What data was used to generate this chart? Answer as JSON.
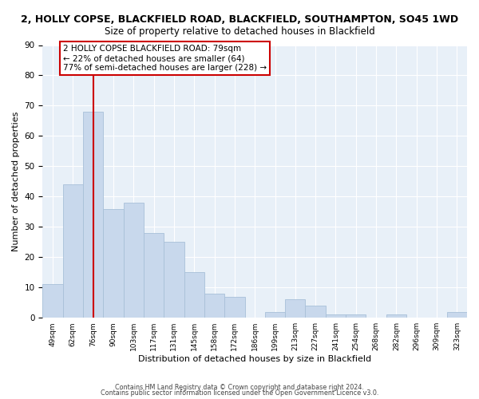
{
  "title": "2, HOLLY COPSE, BLACKFIELD ROAD, BLACKFIELD, SOUTHAMPTON, SO45 1WD",
  "subtitle": "Size of property relative to detached houses in Blackfield",
  "xlabel": "Distribution of detached houses by size in Blackfield",
  "ylabel": "Number of detached properties",
  "bar_color": "#c8d8ec",
  "bar_edge_color": "#a8c0d8",
  "categories": [
    "49sqm",
    "62sqm",
    "76sqm",
    "90sqm",
    "103sqm",
    "117sqm",
    "131sqm",
    "145sqm",
    "158sqm",
    "172sqm",
    "186sqm",
    "199sqm",
    "213sqm",
    "227sqm",
    "241sqm",
    "254sqm",
    "268sqm",
    "282sqm",
    "296sqm",
    "309sqm",
    "323sqm"
  ],
  "values": [
    11,
    44,
    68,
    36,
    38,
    28,
    25,
    15,
    8,
    7,
    0,
    2,
    6,
    4,
    1,
    1,
    0,
    1,
    0,
    0,
    2
  ],
  "vline_x": 2,
  "vline_color": "#cc0000",
  "ylim": [
    0,
    90
  ],
  "yticks": [
    0,
    10,
    20,
    30,
    40,
    50,
    60,
    70,
    80,
    90
  ],
  "annotation_title": "2 HOLLY COPSE BLACKFIELD ROAD: 79sqm",
  "annotation_line1": "← 22% of detached houses are smaller (64)",
  "annotation_line2": "77% of semi-detached houses are larger (228) →",
  "footer1": "Contains HM Land Registry data © Crown copyright and database right 2024.",
  "footer2": "Contains public sector information licensed under the Open Government Licence v3.0."
}
